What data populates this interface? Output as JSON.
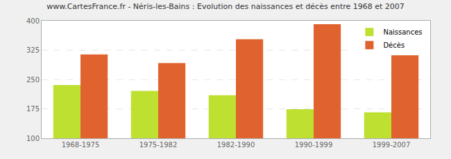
{
  "chart_data": {
    "type": "bar",
    "title": "www.CartesFrance.fr - Néris-les-Bains : Evolution des naissances et décès entre 1968 et 2007",
    "categories": [
      "1968-1975",
      "1975-1982",
      "1982-1990",
      "1990-1999",
      "1999-2007"
    ],
    "series": [
      {
        "name": "Naissances",
        "color": "#bde031",
        "values": [
          236,
          221,
          210,
          174,
          166
        ]
      },
      {
        "name": "Décès",
        "color": "#e0622f",
        "values": [
          314,
          292,
          353,
          391,
          312
        ]
      }
    ],
    "ylim": [
      100,
      400
    ],
    "yticks": [
      100,
      175,
      250,
      325,
      400
    ],
    "grid": true,
    "legend": "top right"
  }
}
